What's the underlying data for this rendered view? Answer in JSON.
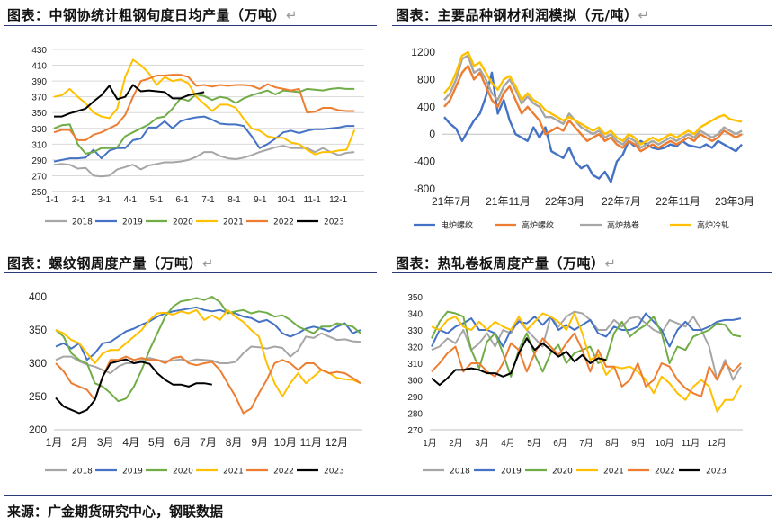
{
  "titles": {
    "t1": "图表：中钢协统计粗钢旬度日均产量（万吨）",
    "t2": "图表：主要品种钢材利润模拟（元/吨）",
    "t3": "图表：螺纹钢周度产量（万吨）",
    "t4": "图表：热轧卷板周度产量（万吨）",
    "mark": "↵"
  },
  "source": "来源：广金期货研究中心，钢联数据",
  "chart_data": [
    {
      "type": "line",
      "ylim": [
        250,
        430
      ],
      "yticks": [
        250,
        270,
        290,
        310,
        330,
        350,
        370,
        390,
        410,
        430
      ],
      "xticks": [
        "1-1",
        "2-1",
        "3-1",
        "4-1",
        "5-1",
        "6-1",
        "7-1",
        "8-1",
        "9-1",
        "10-1",
        "11-1",
        "12-1"
      ],
      "legend_position": "bottom",
      "series": [
        {
          "name": "2018",
          "color": "#a6a6a6",
          "values": [
            284,
            285,
            284,
            279,
            280,
            270,
            269,
            270,
            278,
            281,
            284,
            278,
            283,
            285,
            287,
            287,
            288,
            290,
            294,
            300,
            300,
            295,
            292,
            291,
            293,
            296,
            300,
            303,
            306,
            308,
            305,
            305,
            305,
            300,
            305,
            300,
            296,
            299,
            300
          ]
        },
        {
          "name": "2019",
          "color": "#4472c4",
          "values": [
            288,
            290,
            292,
            292,
            293,
            303,
            292,
            302,
            305,
            305,
            315,
            317,
            331,
            331,
            339,
            330,
            339,
            342,
            344,
            345,
            341,
            336,
            335,
            335,
            333,
            320,
            305,
            310,
            317,
            325,
            327,
            324,
            327,
            329,
            329,
            330,
            331,
            333,
            333
          ]
        },
        {
          "name": "2020",
          "color": "#70ad47",
          "values": [
            330,
            334,
            335,
            310,
            298,
            300,
            305,
            305,
            306,
            320,
            325,
            330,
            335,
            343,
            345,
            355,
            368,
            365,
            373,
            371,
            366,
            370,
            368,
            362,
            368,
            372,
            375,
            378,
            373,
            378,
            377,
            376,
            380,
            379,
            378,
            380,
            381,
            380,
            380
          ]
        },
        {
          "name": "2021",
          "color": "#ffc000",
          "values": [
            370,
            372,
            380,
            370,
            362,
            350,
            345,
            343,
            355,
            395,
            417,
            410,
            400,
            385,
            395,
            390,
            392,
            387,
            370,
            361,
            352,
            360,
            360,
            356,
            342,
            330,
            327,
            320,
            318,
            318,
            312,
            310,
            303,
            297,
            300,
            300,
            302,
            303,
            328
          ]
        },
        {
          "name": "2022",
          "color": "#ed7d31",
          "values": [
            325,
            328,
            328,
            315,
            315,
            322,
            325,
            330,
            335,
            347,
            370,
            390,
            393,
            397,
            397,
            398,
            398,
            395,
            384,
            385,
            383,
            385,
            384,
            385,
            385,
            384,
            380,
            386,
            382,
            380,
            378,
            380,
            350,
            351,
            356,
            356,
            353,
            352,
            352
          ]
        },
        {
          "name": "2023",
          "color": "#000000",
          "values": [
            345,
            345,
            349,
            352,
            355,
            364,
            372,
            384,
            367,
            370,
            385,
            377,
            378,
            377,
            376,
            368,
            368,
            372,
            374,
            376
          ]
        }
      ]
    },
    {
      "type": "line",
      "ylim": [
        -800,
        1200
      ],
      "yticks": [
        -800,
        -400,
        0,
        400,
        800,
        1200
      ],
      "xticks": [
        "21年7月",
        "21年11月",
        "22年3月",
        "22年7月",
        "22年11月",
        "23年3月"
      ],
      "legend_position": "bottom",
      "series": [
        {
          "name": "电炉螺纹",
          "color": "#4472c4",
          "values": [
            250,
            150,
            80,
            -100,
            50,
            200,
            300,
            550,
            900,
            300,
            500,
            200,
            0,
            -50,
            -100,
            100,
            -50,
            100,
            -250,
            -300,
            -350,
            -200,
            -400,
            -500,
            -450,
            -600,
            -650,
            -550,
            -700,
            -400,
            -300,
            -100,
            -180,
            -100,
            -150,
            -200,
            -220,
            -200,
            -150,
            -180,
            -100,
            -160,
            -180,
            -200,
            -150,
            -200,
            -100,
            -150,
            -200,
            -250,
            -150
          ]
        },
        {
          "name": "高炉螺纹",
          "color": "#ed7d31",
          "values": [
            400,
            500,
            700,
            900,
            1000,
            800,
            900,
            700,
            500,
            400,
            600,
            700,
            500,
            300,
            400,
            300,
            200,
            0,
            50,
            100,
            50,
            200,
            100,
            0,
            -100,
            -50,
            0,
            -100,
            -50,
            -150,
            -200,
            -100,
            -150,
            -250,
            -200,
            -150,
            -200,
            -150,
            -100,
            -150,
            -100,
            -50,
            -100,
            0,
            -50,
            -100,
            -50,
            50,
            0,
            -50,
            0
          ]
        },
        {
          "name": "高炉热卷",
          "color": "#a6a6a6",
          "values": [
            500,
            600,
            800,
            1100,
            1150,
            900,
            950,
            800,
            600,
            500,
            700,
            800,
            650,
            450,
            550,
            450,
            400,
            250,
            250,
            200,
            150,
            300,
            200,
            100,
            50,
            0,
            50,
            -50,
            0,
            -100,
            -150,
            -50,
            -100,
            -200,
            -150,
            -100,
            -150,
            -100,
            -50,
            -100,
            -50,
            0,
            -50,
            50,
            0,
            -50,
            0,
            100,
            50,
            0,
            50
          ]
        },
        {
          "name": "高炉冷轧",
          "color": "#ffc000",
          "values": [
            600,
            700,
            900,
            1150,
            1200,
            1000,
            1050,
            900,
            750,
            650,
            800,
            850,
            700,
            500,
            600,
            500,
            450,
            350,
            300,
            250,
            200,
            250,
            200,
            150,
            100,
            50,
            100,
            0,
            50,
            -50,
            -100,
            0,
            -50,
            -150,
            -100,
            -50,
            -100,
            -50,
            0,
            -50,
            0,
            50,
            0,
            100,
            150,
            200,
            250,
            280,
            220,
            200,
            180
          ]
        }
      ]
    },
    {
      "type": "line",
      "ylim": [
        200,
        400
      ],
      "yticks": [
        200,
        250,
        300,
        350,
        400
      ],
      "xticks": [
        "1月",
        "2月",
        "3月",
        "4月",
        "5月",
        "6月",
        "7月",
        "8月",
        "9月",
        "10月",
        "11月",
        "12月"
      ],
      "legend_position": "bottom",
      "series": [
        {
          "name": "2018",
          "color": "#a6a6a6",
          "values": [
            305,
            310,
            310,
            303,
            298,
            295,
            290,
            285,
            295,
            300,
            300,
            305,
            308,
            305,
            303,
            304,
            306,
            303,
            306,
            305,
            304,
            300,
            300,
            302,
            315,
            325,
            324,
            322,
            325,
            323,
            310,
            320,
            340,
            338,
            345,
            340,
            335,
            336,
            333,
            332
          ]
        },
        {
          "name": "2019",
          "color": "#4472c4",
          "values": [
            325,
            330,
            322,
            330,
            305,
            315,
            330,
            332,
            340,
            348,
            352,
            358,
            363,
            370,
            375,
            378,
            380,
            382,
            384,
            380,
            378,
            380,
            376,
            375,
            370,
            368,
            362,
            365,
            358,
            345,
            340,
            345,
            352,
            355,
            352,
            348,
            355,
            360,
            345,
            350
          ]
        },
        {
          "name": "2020",
          "color": "#70ad47",
          "values": [
            350,
            340,
            315,
            305,
            300,
            270,
            265,
            255,
            243,
            247,
            265,
            290,
            320,
            345,
            370,
            385,
            393,
            395,
            398,
            395,
            400,
            392,
            375,
            378,
            380,
            375,
            378,
            376,
            370,
            372,
            365,
            355,
            350,
            345,
            355,
            355,
            360,
            358,
            355,
            345
          ]
        },
        {
          "name": "2021",
          "color": "#ffc000",
          "values": [
            350,
            345,
            335,
            330,
            315,
            300,
            315,
            320,
            320,
            330,
            340,
            350,
            365,
            375,
            376,
            373,
            378,
            375,
            380,
            365,
            372,
            365,
            380,
            370,
            362,
            350,
            340,
            300,
            270,
            250,
            270,
            285,
            270,
            280,
            290,
            285,
            278,
            276,
            275,
            270
          ]
        },
        {
          "name": "2022",
          "color": "#ed7d31",
          "values": [
            300,
            288,
            270,
            265,
            260,
            245,
            280,
            305,
            305,
            310,
            305,
            308,
            305,
            305,
            300,
            308,
            310,
            300,
            297,
            300,
            302,
            290,
            270,
            250,
            225,
            232,
            255,
            275,
            300,
            305,
            300,
            290,
            300,
            300,
            290,
            285,
            287,
            285,
            278,
            270
          ]
        },
        {
          "name": "2023",
          "color": "#000000",
          "values": [
            248,
            235,
            230,
            225,
            230,
            245,
            280,
            300,
            303,
            306,
            300,
            302,
            299,
            285,
            275,
            268,
            268,
            265,
            270,
            270,
            268
          ]
        }
      ]
    },
    {
      "type": "line",
      "ylim": [
        270,
        350
      ],
      "yticks": [
        270,
        280,
        290,
        300,
        310,
        320,
        330,
        340,
        350
      ],
      "xticks": [
        "1月",
        "2月",
        "3月",
        "4月",
        "5月",
        "6月",
        "7月",
        "8月",
        "9月",
        "10月",
        "11月",
        "12月"
      ],
      "legend_position": "bottom",
      "series": [
        {
          "name": "2018",
          "color": "#a6a6a6",
          "values": [
            318,
            320,
            325,
            322,
            330,
            318,
            322,
            328,
            320,
            330,
            328,
            336,
            330,
            325,
            320,
            338,
            332,
            338,
            341,
            340,
            336,
            330,
            330,
            336,
            332,
            337,
            338,
            334,
            330,
            328,
            336,
            334,
            332,
            338,
            330,
            320,
            300,
            312,
            300,
            308
          ]
        },
        {
          "name": "2019",
          "color": "#4472c4",
          "values": [
            320,
            330,
            328,
            332,
            334,
            337,
            330,
            330,
            328,
            320,
            330,
            335,
            334,
            338,
            333,
            338,
            330,
            333,
            330,
            333,
            336,
            328,
            326,
            332,
            330,
            330,
            332,
            340,
            335,
            330,
            320,
            330,
            335,
            330,
            330,
            332,
            335,
            336,
            336,
            337
          ]
        },
        {
          "name": "2020",
          "color": "#70ad47",
          "values": [
            325,
            335,
            341,
            340,
            338,
            318,
            307,
            323,
            328,
            316,
            302,
            318,
            328,
            315,
            305,
            316,
            321,
            310,
            316,
            318,
            320,
            310,
            312,
            328,
            335,
            326,
            330,
            333,
            338,
            328,
            310,
            320,
            318,
            326,
            328,
            330,
            334,
            333,
            327,
            326
          ]
        },
        {
          "name": "2021",
          "color": "#ffc000",
          "values": [
            332,
            330,
            336,
            338,
            332,
            330,
            335,
            330,
            335,
            332,
            330,
            338,
            330,
            335,
            340,
            338,
            335,
            330,
            340,
            328,
            312,
            315,
            303,
            308,
            307,
            308,
            305,
            300,
            292,
            302,
            298,
            292,
            288,
            296,
            300,
            296,
            281,
            288,
            288,
            297
          ]
        },
        {
          "name": "2022",
          "color": "#ed7d31",
          "values": [
            305,
            310,
            316,
            320,
            305,
            310,
            310,
            305,
            302,
            310,
            322,
            318,
            305,
            316,
            325,
            320,
            315,
            322,
            328,
            318,
            305,
            318,
            308,
            308,
            296,
            300,
            310,
            296,
            300,
            310,
            308,
            300,
            295,
            292,
            290,
            308,
            300,
            310,
            305,
            310
          ]
        },
        {
          "name": "2023",
          "color": "#000000",
          "values": [
            301,
            297,
            301,
            306,
            306,
            307,
            306,
            304,
            304,
            302,
            304,
            316,
            325,
            318,
            322,
            318,
            314,
            317,
            311,
            315,
            310,
            313,
            312
          ]
        }
      ]
    }
  ]
}
